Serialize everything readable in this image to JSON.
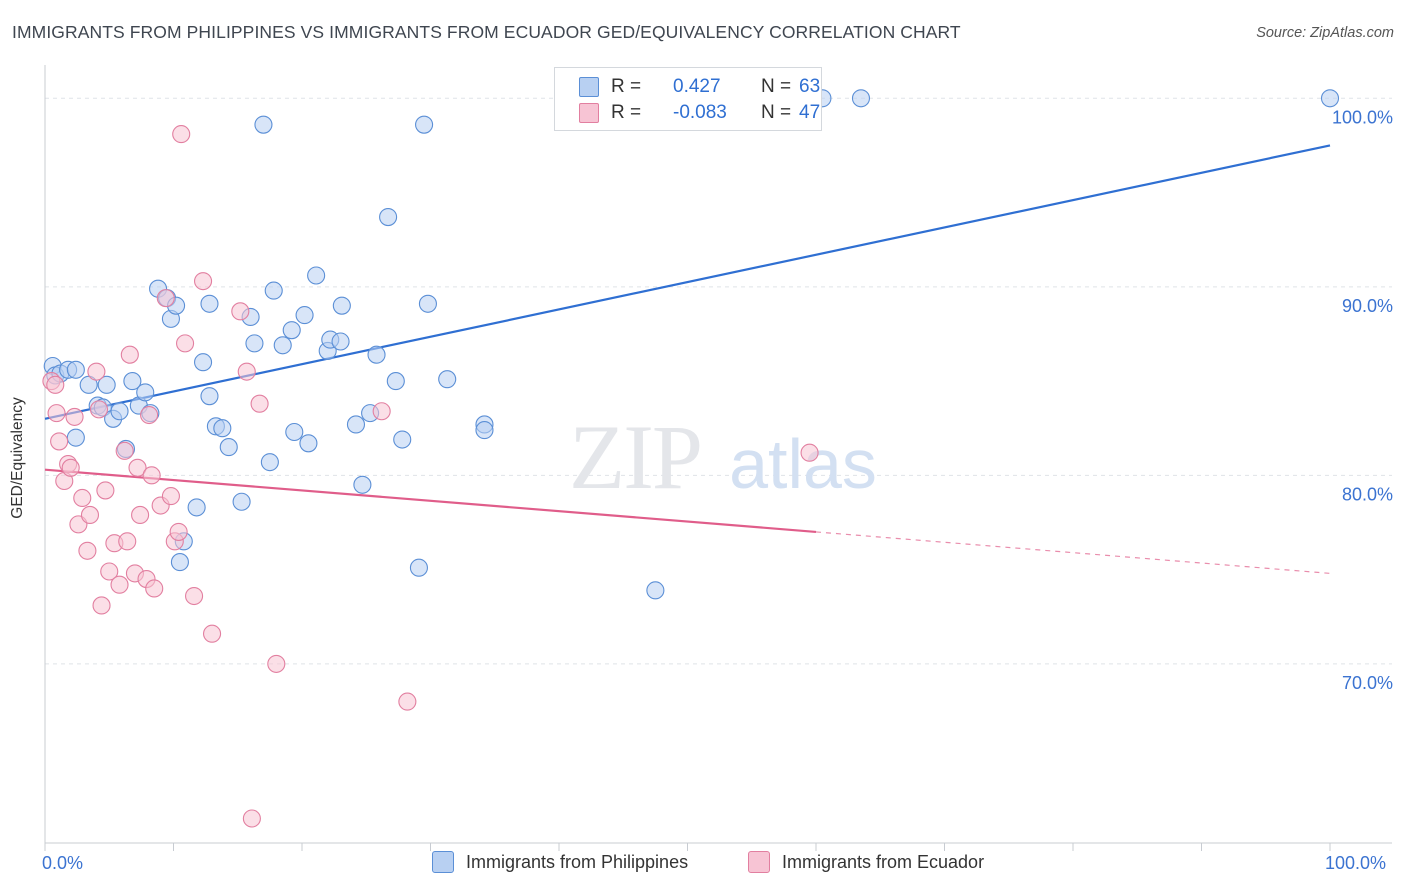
{
  "title": "IMMIGRANTS FROM PHILIPPINES VS IMMIGRANTS FROM ECUADOR GED/EQUIVALENCY CORRELATION CHART",
  "source": "Source: ZipAtlas.com",
  "watermark": {
    "zip": "ZIP",
    "atlas": "atlas"
  },
  "legend_top": {
    "r_label": "R =",
    "n_label": "N =",
    "series": [
      {
        "r": "0.427",
        "n": "63"
      },
      {
        "r": "-0.083",
        "n": "47"
      }
    ]
  },
  "colors": {
    "blue_fill": "#b8d0f2",
    "blue_stroke": "#5b8fd6",
    "blue_line": "#2f6fd2",
    "pink_fill": "#f7c4d4",
    "pink_stroke": "#e27fa0",
    "pink_line": "#e05d8a",
    "axis_text": "#3b73d1",
    "grid": "#dfe3e8"
  },
  "chart_data": {
    "type": "scatter",
    "title": "IMMIGRANTS FROM PHILIPPINES VS IMMIGRANTS FROM ECUADOR GED/EQUIVALENCY CORRELATION CHART",
    "xlabel": "",
    "ylabel": "GED/Equivalency",
    "xlim": [
      0,
      100
    ],
    "ylim": [
      60.5,
      101.5
    ],
    "x_tick_labels": [
      "0.0%",
      "100.0%"
    ],
    "y_ticks": [
      70,
      80,
      90,
      100
    ],
    "y_tick_labels": [
      "70.0%",
      "80.0%",
      "90.0%",
      "100.0%"
    ],
    "grid": true,
    "legend_position": "bottom",
    "series": [
      {
        "name": "Immigrants from Philippines",
        "color": "#5b8fd6",
        "r": 0.427,
        "n": 63,
        "trend": {
          "x0": 0,
          "y0": 83.0,
          "x1": 100,
          "y1": 97.5,
          "dashed_from": null
        },
        "points": [
          [
            0.6,
            85.8
          ],
          [
            0.8,
            85.3
          ],
          [
            1.2,
            85.4
          ],
          [
            1.8,
            85.6
          ],
          [
            2.4,
            85.6
          ],
          [
            2.4,
            82.0
          ],
          [
            3.4,
            84.8
          ],
          [
            4.1,
            83.7
          ],
          [
            4.5,
            83.6
          ],
          [
            4.8,
            84.8
          ],
          [
            5.3,
            83.0
          ],
          [
            5.8,
            83.4
          ],
          [
            6.3,
            81.4
          ],
          [
            6.8,
            85.0
          ],
          [
            7.3,
            83.7
          ],
          [
            7.8,
            84.4
          ],
          [
            8.2,
            83.3
          ],
          [
            8.8,
            89.9
          ],
          [
            9.5,
            89.4
          ],
          [
            9.8,
            88.3
          ],
          [
            10.2,
            89.0
          ],
          [
            10.8,
            76.5
          ],
          [
            10.5,
            75.4
          ],
          [
            11.8,
            78.3
          ],
          [
            12.3,
            86.0
          ],
          [
            12.8,
            84.2
          ],
          [
            12.8,
            89.1
          ],
          [
            13.3,
            82.6
          ],
          [
            13.8,
            82.5
          ],
          [
            14.3,
            81.5
          ],
          [
            15.3,
            78.6
          ],
          [
            16.0,
            88.4
          ],
          [
            16.3,
            87.0
          ],
          [
            17.0,
            98.6
          ],
          [
            17.5,
            80.7
          ],
          [
            17.8,
            89.8
          ],
          [
            18.5,
            86.9
          ],
          [
            19.2,
            87.7
          ],
          [
            19.4,
            82.3
          ],
          [
            20.2,
            88.5
          ],
          [
            20.5,
            81.7
          ],
          [
            21.1,
            90.6
          ],
          [
            22.0,
            86.6
          ],
          [
            22.2,
            87.2
          ],
          [
            23.0,
            87.1
          ],
          [
            23.1,
            89.0
          ],
          [
            24.2,
            82.7
          ],
          [
            24.7,
            79.5
          ],
          [
            25.3,
            83.3
          ],
          [
            25.8,
            86.4
          ],
          [
            26.7,
            93.7
          ],
          [
            27.3,
            85.0
          ],
          [
            27.8,
            81.9
          ],
          [
            29.1,
            75.1
          ],
          [
            29.5,
            98.6
          ],
          [
            29.8,
            89.1
          ],
          [
            31.3,
            85.1
          ],
          [
            34.2,
            82.7
          ],
          [
            34.2,
            82.4
          ],
          [
            47.5,
            73.9
          ],
          [
            60.5,
            100.0
          ],
          [
            63.5,
            100.0
          ],
          [
            100.0,
            100.0
          ]
        ]
      },
      {
        "name": "Immigrants from Ecuador",
        "color": "#e27fa0",
        "r": -0.083,
        "n": 47,
        "trend": {
          "x0": 0,
          "y0": 80.3,
          "x1": 100,
          "y1": 74.8,
          "dashed_from": 60
        },
        "points": [
          [
            0.5,
            85.0
          ],
          [
            0.8,
            84.8
          ],
          [
            0.9,
            83.3
          ],
          [
            1.1,
            81.8
          ],
          [
            1.5,
            79.7
          ],
          [
            1.8,
            80.6
          ],
          [
            2.0,
            80.4
          ],
          [
            2.3,
            83.1
          ],
          [
            2.6,
            77.4
          ],
          [
            2.9,
            78.8
          ],
          [
            3.3,
            76.0
          ],
          [
            3.5,
            77.9
          ],
          [
            4.0,
            85.5
          ],
          [
            4.2,
            83.5
          ],
          [
            4.4,
            73.1
          ],
          [
            4.7,
            79.2
          ],
          [
            5.0,
            74.9
          ],
          [
            5.4,
            76.4
          ],
          [
            5.8,
            74.2
          ],
          [
            6.2,
            81.3
          ],
          [
            6.4,
            76.5
          ],
          [
            6.6,
            86.4
          ],
          [
            7.0,
            74.8
          ],
          [
            7.2,
            80.4
          ],
          [
            7.4,
            77.9
          ],
          [
            7.9,
            74.5
          ],
          [
            8.1,
            83.2
          ],
          [
            8.3,
            80.0
          ],
          [
            8.5,
            74.0
          ],
          [
            9.0,
            78.4
          ],
          [
            9.4,
            89.4
          ],
          [
            9.8,
            78.9
          ],
          [
            10.1,
            76.5
          ],
          [
            10.4,
            77.0
          ],
          [
            10.6,
            98.1
          ],
          [
            10.9,
            87.0
          ],
          [
            11.6,
            73.6
          ],
          [
            12.3,
            90.3
          ],
          [
            13.0,
            71.6
          ],
          [
            15.2,
            88.7
          ],
          [
            15.7,
            85.5
          ],
          [
            16.1,
            61.8
          ],
          [
            16.7,
            83.8
          ],
          [
            18.0,
            70.0
          ],
          [
            26.2,
            83.4
          ],
          [
            28.2,
            68.0
          ],
          [
            59.5,
            81.2
          ]
        ]
      }
    ]
  },
  "bottom_legend": [
    "Immigrants from Philippines",
    "Immigrants from Ecuador"
  ]
}
